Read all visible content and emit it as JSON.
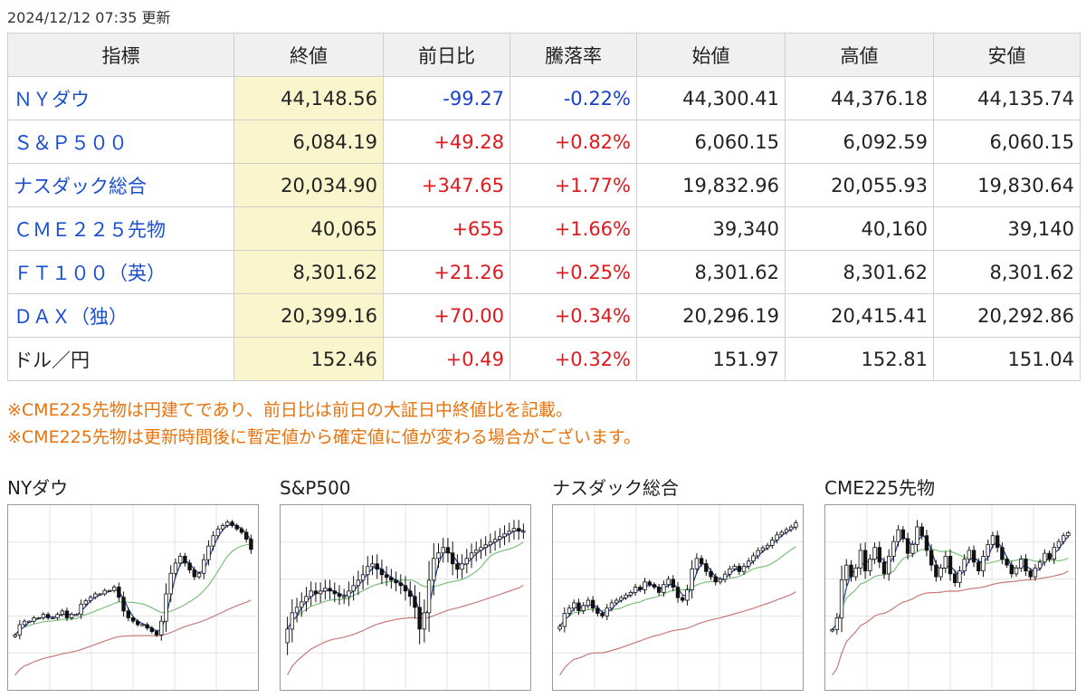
{
  "header": {
    "updated": "2024/12/12 07:35 更新"
  },
  "table": {
    "headers": [
      "指標",
      "終値",
      "前日比",
      "騰落率",
      "始値",
      "高値",
      "安値"
    ],
    "rows": [
      {
        "name": "ＮＹダウ",
        "link": true,
        "close": "44,148.56",
        "change": "-99.27",
        "rate": "-0.22%",
        "dir": "neg",
        "open": "44,300.41",
        "high": "44,376.18",
        "low": "44,135.74"
      },
      {
        "name": "Ｓ＆Ｐ５００",
        "link": true,
        "close": "6,084.19",
        "change": "+49.28",
        "rate": "+0.82%",
        "dir": "pos",
        "open": "6,060.15",
        "high": "6,092.59",
        "low": "6,060.15"
      },
      {
        "name": "ナスダック総合",
        "link": true,
        "close": "20,034.90",
        "change": "+347.65",
        "rate": "+1.77%",
        "dir": "pos",
        "open": "19,832.96",
        "high": "20,055.93",
        "low": "19,830.64"
      },
      {
        "name": "ＣＭＥ２２５先物",
        "link": true,
        "close": "40,065",
        "change": "+655",
        "rate": "+1.66%",
        "dir": "pos",
        "open": "39,340",
        "high": "40,160",
        "low": "39,140"
      },
      {
        "name": "ＦＴ１００（英）",
        "link": true,
        "close": "8,301.62",
        "change": "+21.26",
        "rate": "+0.25%",
        "dir": "pos",
        "open": "8,301.62",
        "high": "8,301.62",
        "low": "8,301.62"
      },
      {
        "name": "ＤＡＸ（独）",
        "link": true,
        "close": "20,399.16",
        "change": "+70.00",
        "rate": "+0.34%",
        "dir": "pos",
        "open": "20,296.19",
        "high": "20,415.41",
        "low": "20,292.86"
      },
      {
        "name": "ドル／円",
        "link": false,
        "close": "152.46",
        "change": "+0.49",
        "rate": "+0.32%",
        "dir": "pos",
        "open": "151.97",
        "high": "152.81",
        "low": "151.04"
      }
    ]
  },
  "notes": [
    "※CME225先物は円建てであり、前日比は前日の大証日中終値比を記載。",
    "※CME225先物は更新時間後に暫定値から確定値に値が変わる場合がございます。"
  ],
  "colors": {
    "up_candle": "#ffffff",
    "down_candle": "#111111",
    "ma_short": "#1f3f9a",
    "ma_mid": "#7cc07c",
    "ma_long": "#c77a7a",
    "grid": "#e3e3e3"
  },
  "charts": [
    {
      "title": "NYダウ",
      "closes": [
        41.6,
        41.9,
        42.0,
        42.0,
        42.1,
        42.1,
        42.2,
        42.1,
        42.1,
        42.2,
        42.3,
        42.1,
        42.2,
        42.2,
        42.5,
        42.6,
        42.7,
        42.8,
        42.8,
        42.9,
        42.9,
        43.0,
        42.7,
        42.3,
        42.1,
        42.0,
        41.9,
        41.9,
        41.8,
        41.7,
        41.6,
        42.0,
        42.8,
        43.4,
        43.7,
        43.9,
        43.7,
        43.5,
        43.3,
        43.4,
        43.8,
        44.2,
        44.5,
        44.7,
        44.8,
        44.9,
        44.8,
        44.7,
        44.6,
        44.4,
        44.1
      ]
    },
    {
      "title": "S&P500",
      "closes": [
        5.72,
        5.78,
        5.8,
        5.82,
        5.84,
        5.86,
        5.85,
        5.86,
        5.87,
        5.86,
        5.85,
        5.84,
        5.84,
        5.86,
        5.88,
        5.9,
        5.92,
        5.95,
        5.96,
        5.94,
        5.92,
        5.91,
        5.9,
        5.89,
        5.88,
        5.86,
        5.84,
        5.8,
        5.72,
        5.78,
        5.9,
        5.98,
        6.0,
        6.02,
        6.0,
        5.96,
        5.94,
        5.96,
        5.98,
        6.0,
        6.01,
        6.02,
        6.03,
        6.04,
        6.05,
        6.06,
        6.07,
        6.08,
        6.09,
        6.08,
        6.08
      ]
    },
    {
      "title": "ナスダック総合",
      "closes": [
        18.05,
        18.3,
        18.4,
        18.5,
        18.35,
        18.45,
        18.55,
        18.4,
        18.3,
        18.25,
        18.4,
        18.5,
        18.55,
        18.6,
        18.65,
        18.7,
        18.8,
        18.75,
        18.9,
        18.85,
        18.8,
        18.7,
        18.85,
        18.95,
        18.8,
        18.6,
        18.55,
        18.75,
        19.15,
        19.35,
        19.25,
        19.1,
        19.0,
        18.9,
        18.95,
        19.05,
        19.15,
        19.2,
        19.1,
        19.2,
        19.3,
        19.4,
        19.5,
        19.55,
        19.6,
        19.7,
        19.8,
        19.85,
        19.9,
        19.95,
        20.03
      ]
    },
    {
      "title": "CME225先物",
      "closes": [
        36.8,
        37.2,
        38.5,
        39.0,
        38.6,
        38.9,
        39.5,
        38.8,
        39.2,
        39.6,
        39.1,
        38.7,
        39.3,
        39.8,
        40.2,
        39.9,
        39.4,
        39.7,
        40.3,
        40.0,
        39.5,
        39.0,
        38.6,
        38.9,
        39.3,
        38.7,
        38.4,
        38.8,
        39.2,
        39.5,
        39.1,
        38.8,
        39.3,
        39.7,
        40.0,
        39.6,
        39.2,
        39.0,
        38.7,
        38.9,
        39.2,
        38.8,
        38.6,
        38.9,
        39.1,
        39.4,
        39.2,
        39.6,
        39.8,
        40.0,
        40.1
      ]
    }
  ]
}
